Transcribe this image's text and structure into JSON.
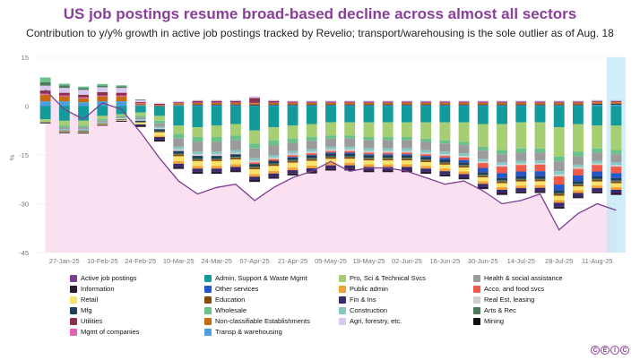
{
  "title": "US job postings resume broad-based decline across almost all sectors",
  "subtitle": "Contribution to y/y% growth in active job postings tracked by Revelio; transport/warehousing is the sole outlier as of Aug. 18",
  "brand": "CEIC",
  "colors": {
    "Active job postings": "#7b3f91",
    "Information": "#2b1a33",
    "Retail": "#f7e36a",
    "Mfg": "#1f3e5a",
    "Utilities": "#8b2f4a",
    "Mgmt of companies": "#e060b5",
    "Admin, Support & Waste Mgmt": "#139a9a",
    "Other services": "#2457c8",
    "Education": "#8b4a0f",
    "Wholesale": "#6ac28a",
    "Non-classifiable Establishments": "#c86a12",
    "Transp & warehousing": "#4aa0dd",
    "Pro, Sci & Technical Svcs": "#a6cf73",
    "Public admin": "#f5a13a",
    "Fin & Ins": "#3a2a6b",
    "Construction": "#87c7c3",
    "Agri, forestry, etc.": "#d8c8f0",
    "Health & social assistance": "#9b9b9b",
    "Acco. and food svcs": "#ef5a4a",
    "Real Est. leasing": "#cfcfcf",
    "Arts & Rec": "#4a7a5a",
    "Mining": "#111111"
  },
  "chart_data": {
    "type": "bar",
    "stacked": true,
    "title": "US job postings resume broad-based decline across almost all sectors",
    "ylabel": "%",
    "xlabel": "",
    "ylim": [
      -45,
      15
    ],
    "yticks": [
      15,
      0,
      -15,
      -30,
      -45
    ],
    "highlight_last": true,
    "xtick_labels": [
      "27-Jan-25",
      "10-Feb-25",
      "24-Feb-25",
      "10-Mar-25",
      "24-Mar-25",
      "07-Apr-25",
      "21-Apr-25",
      "05-May-25",
      "19-May-25",
      "02-Jun-25",
      "16-Jun-25",
      "30-Jun-25",
      "14-Jul-25",
      "28-Jul-25",
      "11-Aug-25"
    ],
    "categories": [
      "20-Jan-25",
      "27-Jan-25",
      "03-Feb-25",
      "10-Feb-25",
      "17-Feb-25",
      "24-Feb-25",
      "03-Mar-25",
      "10-Mar-25",
      "17-Mar-25",
      "24-Mar-25",
      "31-Mar-25",
      "07-Apr-25",
      "14-Apr-25",
      "21-Apr-25",
      "28-Apr-25",
      "05-May-25",
      "12-May-25",
      "19-May-25",
      "26-May-25",
      "02-Jun-25",
      "09-Jun-25",
      "16-Jun-25",
      "23-Jun-25",
      "30-Jun-25",
      "07-Jul-25",
      "14-Jul-25",
      "21-Jul-25",
      "28-Jul-25",
      "04-Aug-25",
      "11-Aug-25",
      "18-Aug-25"
    ],
    "line": {
      "name": "Active job postings",
      "values": [
        5,
        -1,
        -4,
        1,
        -1,
        -8,
        -16,
        -23,
        -27,
        -25,
        -24,
        -29,
        -25,
        -22,
        -20,
        -17,
        -20,
        -19,
        -19,
        -20,
        -22,
        -24,
        -23,
        -26,
        -30,
        -29,
        -27,
        -38,
        -33,
        -30,
        -32
      ]
    },
    "series": [
      {
        "name": "Admin, Support & Waste Mgmt",
        "values": [
          -4,
          -4.5,
          -4.5,
          -3,
          -2.5,
          -2,
          -3,
          -6,
          -6.5,
          -6,
          -5.5,
          -7.5,
          -6.5,
          -6,
          -5.5,
          -5,
          -5,
          -5,
          -5,
          -5,
          -5,
          -5,
          -5,
          -5.5,
          -5.5,
          -5,
          -5,
          -6.5,
          -5.5,
          -6,
          -6
        ]
      },
      {
        "name": "Pro, Sci & Technical Svcs",
        "values": [
          -1,
          -1.5,
          -1.5,
          -1,
          -0.5,
          -1,
          -1.5,
          -2.5,
          -3,
          -3.5,
          -3.5,
          -4,
          -4,
          -4,
          -4,
          -4,
          -4,
          -4.5,
          -4.5,
          -4.5,
          -5,
          -5.5,
          -6,
          -7,
          -8,
          -8,
          -8,
          -9,
          -8.5,
          -7,
          -7.5
        ]
      },
      {
        "name": "Wholesale",
        "values": [
          0,
          -0.5,
          -0.5,
          -0.5,
          -0.3,
          -0.5,
          -0.8,
          -1.5,
          -1.5,
          -1.5,
          -1.5,
          -1.5,
          -1.5,
          -1.3,
          -1.2,
          -1,
          -1,
          -1,
          -1,
          -1,
          -1,
          -1,
          -1,
          -1.2,
          -1.3,
          -1.3,
          -1.2,
          -1.5,
          -1.5,
          -1.3,
          -1.3
        ]
      },
      {
        "name": "Health & social assistance",
        "values": [
          0,
          -0.5,
          -0.5,
          -0.3,
          -0.3,
          -0.5,
          -1,
          -2.5,
          -3,
          -3,
          -3,
          -3,
          -3,
          -2.5,
          -2.5,
          -2.5,
          -2.5,
          -2.5,
          -2.5,
          -2.5,
          -2.5,
          -2.5,
          -2.5,
          -2.5,
          -2.5,
          -2.5,
          -2.5,
          -3,
          -2.5,
          -2.5,
          -2.5
        ]
      },
      {
        "name": "Construction",
        "values": [
          0,
          -0.3,
          -0.3,
          -0.2,
          -0.2,
          -0.3,
          -0.5,
          -0.8,
          -0.8,
          -0.8,
          -0.8,
          -0.8,
          -0.8,
          -0.8,
          -0.8,
          -0.8,
          -0.8,
          -0.8,
          -0.8,
          -0.8,
          -0.8,
          -0.8,
          -0.8,
          -0.8,
          -0.8,
          -0.8,
          -0.8,
          -1,
          -0.8,
          -0.8,
          -0.8
        ]
      },
      {
        "name": "Real Est. leasing",
        "values": [
          0,
          -0.2,
          -0.2,
          -0.2,
          -0.2,
          -0.2,
          -0.3,
          -0.5,
          -0.5,
          -0.5,
          -0.5,
          -0.5,
          -0.5,
          -0.5,
          -0.5,
          -0.5,
          -0.5,
          -0.5,
          -0.5,
          -0.5,
          -0.5,
          -0.5,
          -0.5,
          -0.5,
          -0.5,
          -0.5,
          -0.5,
          -0.6,
          -0.5,
          -0.5,
          -0.5
        ]
      },
      {
        "name": "Acco. and food svcs",
        "values": [
          0,
          0,
          0,
          0,
          0,
          0,
          0,
          0,
          0,
          0,
          0,
          -0.5,
          -0.5,
          -0.5,
          -0.5,
          -0.5,
          -0.5,
          -0.5,
          -0.5,
          -0.5,
          -0.5,
          -0.6,
          -0.8,
          -1.5,
          -2,
          -2,
          -2,
          -2.5,
          -2,
          -2,
          -2
        ]
      },
      {
        "name": "Other services",
        "values": [
          0,
          0,
          0,
          0,
          0,
          0,
          0,
          0,
          0,
          0,
          0,
          0,
          0,
          -0.2,
          -0.2,
          -0.3,
          -0.3,
          -0.3,
          -0.3,
          -0.3,
          -0.3,
          -0.5,
          -0.7,
          -1.3,
          -1.5,
          -1.5,
          -1.5,
          -1.8,
          -1.8,
          -1.5,
          -1.5
        ]
      },
      {
        "name": "Mfg",
        "values": [
          0,
          -0.2,
          -0.3,
          -0.2,
          -0.2,
          -0.5,
          -0.6,
          -0.8,
          -0.8,
          -0.8,
          -0.8,
          -0.8,
          -0.8,
          -0.8,
          -0.8,
          -0.8,
          -0.8,
          -0.8,
          -0.8,
          -0.8,
          -0.8,
          -0.8,
          -0.8,
          -0.8,
          -0.8,
          -0.8,
          -0.8,
          -0.8,
          -0.8,
          -0.8,
          -0.8
        ]
      },
      {
        "name": "Arts & Rec",
        "values": [
          0,
          0,
          0,
          0,
          0,
          0,
          -0.2,
          -0.3,
          -0.3,
          -0.3,
          -0.3,
          -0.3,
          -0.3,
          -0.3,
          -0.3,
          -0.3,
          -0.3,
          -0.3,
          -0.3,
          -0.3,
          -0.3,
          -0.3,
          -0.3,
          -0.3,
          -0.3,
          -0.3,
          -0.3,
          -0.3,
          -0.3,
          -0.3,
          -0.3
        ]
      },
      {
        "name": "Education",
        "values": [
          0,
          0,
          0,
          0,
          0,
          0,
          -0.2,
          -0.5,
          -0.5,
          -0.5,
          -0.5,
          -0.5,
          -0.5,
          -0.5,
          -0.5,
          -0.5,
          -0.5,
          -0.5,
          -0.5,
          -0.5,
          -0.5,
          -0.5,
          -0.5,
          -0.5,
          -0.5,
          -0.5,
          -0.5,
          -0.6,
          -0.5,
          -0.5,
          -0.5
        ]
      },
      {
        "name": "Retail",
        "values": [
          0,
          -0.3,
          -0.3,
          -0.3,
          -0.3,
          -0.6,
          -1,
          -1.5,
          -1.5,
          -1.5,
          -1.5,
          -1.5,
          -1.5,
          -1.5,
          -1.5,
          -1.2,
          -1.2,
          -1.2,
          -1.2,
          -1.2,
          -1.2,
          -1.2,
          -1.2,
          -1.2,
          -1.2,
          -1.2,
          -1.2,
          -1.3,
          -1.2,
          -1.2,
          -1.2
        ]
      },
      {
        "name": "Public admin",
        "values": [
          0,
          0,
          0,
          0,
          0,
          0,
          -0.4,
          -0.8,
          -0.8,
          -0.8,
          -0.8,
          -0.8,
          -0.8,
          -0.8,
          -0.8,
          -0.8,
          -0.8,
          -0.8,
          -0.8,
          -0.8,
          -0.8,
          -0.8,
          -0.8,
          -0.8,
          -0.8,
          -0.8,
          -0.8,
          -0.8,
          -0.8,
          -0.8,
          -0.8
        ]
      },
      {
        "name": "Fin & Ins",
        "values": [
          0,
          0,
          0,
          0,
          0,
          -0.3,
          -0.8,
          -1,
          -1,
          -1,
          -1,
          -1,
          -1,
          -1,
          -1,
          -1,
          -1,
          -1,
          -1,
          -1,
          -1,
          -1,
          -1,
          -1,
          -1,
          -1,
          -1,
          -1.2,
          -1,
          -1,
          -1
        ]
      },
      {
        "name": "Information",
        "values": [
          -0.3,
          -0.3,
          -0.3,
          -0.3,
          -0.3,
          -0.5,
          -0.6,
          -0.6,
          -0.6,
          -0.6,
          -0.6,
          -0.6,
          -0.6,
          -0.6,
          -0.6,
          -0.6,
          -0.6,
          -0.6,
          -0.6,
          -0.6,
          -0.6,
          -0.6,
          -0.6,
          -0.6,
          -0.6,
          -0.6,
          -0.6,
          -0.6,
          -0.6,
          -0.6,
          -0.6
        ]
      },
      {
        "name": "Transp & warehousing",
        "values": [
          1.5,
          1.5,
          1.2,
          1.5,
          1.5,
          0.3,
          0,
          0.3,
          0.3,
          0.3,
          0.3,
          0.2,
          0.3,
          0.3,
          0.3,
          0.3,
          0.3,
          0.3,
          0.3,
          0.3,
          0.3,
          0.3,
          0.3,
          0.3,
          0.3,
          0.3,
          0.3,
          0.3,
          0.3,
          0.5,
          0.5
        ]
      },
      {
        "name": "Mining",
        "values": [
          0,
          0,
          0,
          0,
          0,
          0,
          0,
          0,
          0.2,
          0.2,
          0.2,
          0.2,
          0.2,
          0.2,
          0.2,
          0.2,
          0.2,
          0.2,
          0.2,
          0.2,
          0.2,
          0.2,
          0.2,
          0.2,
          0.2,
          0.2,
          0.2,
          0.2,
          0.2,
          0.2,
          0.2
        ]
      },
      {
        "name": "Non-classifiable Establishments",
        "values": [
          2,
          1.5,
          1.2,
          1.5,
          1.5,
          0.5,
          0.3,
          0.5,
          0.5,
          0.5,
          0.5,
          0.5,
          0.5,
          0.5,
          0.5,
          0.5,
          0.5,
          0.5,
          0.5,
          0.5,
          0.5,
          0.5,
          0.5,
          0.5,
          0.5,
          0.5,
          0.5,
          0.5,
          0.5,
          0.5,
          0.5
        ]
      },
      {
        "name": "Mgmt of companies",
        "values": [
          0.3,
          0.3,
          0.3,
          0.3,
          0.3,
          0.2,
          0.1,
          0.1,
          0.1,
          0.1,
          0.1,
          0.1,
          0.1,
          0.1,
          0.1,
          0.1,
          0.1,
          0.1,
          0.1,
          0.1,
          0.1,
          0.1,
          0.1,
          0.1,
          0.1,
          0.1,
          0.1,
          0.1,
          0.1,
          0.1,
          0.1
        ]
      },
      {
        "name": "Utilities",
        "values": [
          1,
          0.8,
          0.8,
          1,
          0.8,
          0.3,
          0.3,
          0.3,
          0.5,
          0.5,
          0.5,
          1.5,
          0.5,
          0.3,
          0.3,
          0.3,
          0.3,
          0.3,
          0.3,
          0.3,
          0.3,
          0.3,
          0.3,
          0.3,
          0.3,
          0.3,
          0.3,
          0.3,
          0.3,
          0.3,
          0.3
        ]
      },
      {
        "name": "Agri, forestry, etc.",
        "values": [
          1.5,
          1.5,
          1.5,
          1.5,
          1.5,
          0.5,
          0.3,
          0.3,
          0.3,
          0.3,
          0.3,
          0.5,
          0.3,
          0.3,
          0.3,
          0.3,
          0.3,
          0.3,
          0.3,
          0.3,
          0.3,
          0.3,
          0.3,
          0.3,
          0.3,
          0.3,
          0.3,
          0.3,
          0.3,
          0.3,
          0.3
        ]
      },
      {
        "name": "Arts & Rec",
        "values": [
          1,
          0.8,
          0.5,
          0.5,
          0.5,
          0.2,
          0,
          0,
          0,
          0,
          0,
          0,
          0,
          0,
          0,
          0,
          0,
          0,
          0,
          0,
          0,
          0,
          0,
          0,
          0,
          0,
          0,
          0,
          0,
          0,
          0
        ]
      },
      {
        "name": "Wholesale",
        "values": [
          1.5,
          0.5,
          0.5,
          0.5,
          0.3,
          0,
          0,
          0,
          0,
          0,
          0,
          0,
          0,
          0,
          0,
          0,
          0,
          0,
          0,
          0,
          0,
          0,
          0,
          0,
          0,
          0,
          0,
          0,
          0,
          0,
          0
        ]
      }
    ],
    "legend": [
      "Active job postings",
      "Admin, Support & Waste Mgmt",
      "Pro, Sci & Technical Svcs",
      "Health & social assistance",
      "Information",
      "Other services",
      "Public admin",
      "Acco. and food svcs",
      "Retail",
      "Education",
      "Fin & Ins",
      "Real Est. leasing",
      "Mfg",
      "Wholesale",
      "Construction",
      "Arts & Rec",
      "Utilities",
      "Non-classifiable Establishments",
      "Agri, forestry, etc.",
      "Mining",
      "Mgmt of companies",
      "Transp & warehousing"
    ]
  }
}
